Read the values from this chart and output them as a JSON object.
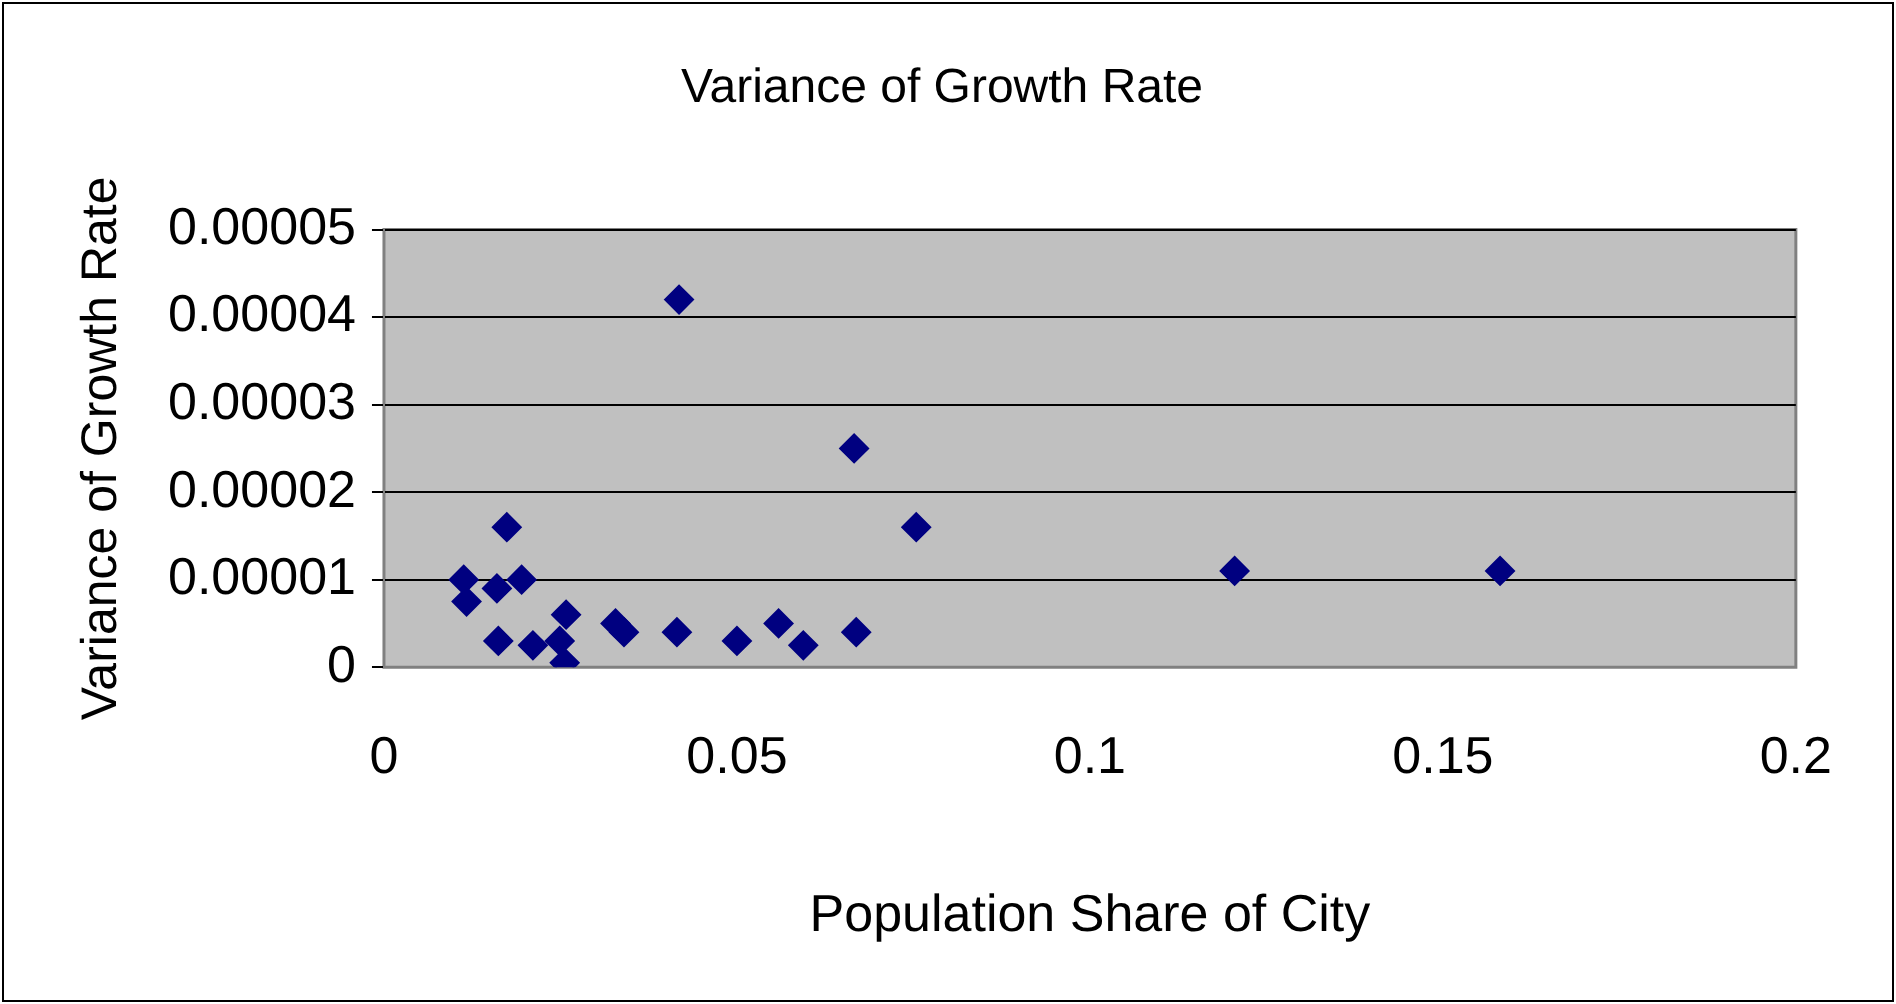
{
  "chart_data": {
    "type": "scatter",
    "title": "Variance of Growth Rate",
    "xlabel": "Population Share of City",
    "ylabel": "Variance of Growth Rate",
    "x": [
      0.0418,
      0.0666,
      0.0174,
      0.0754,
      0.0113,
      0.016,
      0.0195,
      0.0117,
      0.0258,
      0.0328,
      0.034,
      0.0162,
      0.0211,
      0.0249,
      0.0256,
      0.0415,
      0.05,
      0.0559,
      0.0594,
      0.0669,
      0.1205,
      0.1581
    ],
    "series": [
      {
        "color": "#000080",
        "values": [
          4.2e-05,
          2.5e-05,
          1.6e-05,
          1.6e-05,
          1e-05,
          9e-06,
          1e-05,
          7.5e-06,
          6e-06,
          5e-06,
          4e-06,
          3e-06,
          2.5e-06,
          3e-06,
          5e-07,
          4e-06,
          3e-06,
          5e-06,
          2.5e-06,
          4e-06,
          1.1e-05,
          1.1e-05
        ]
      }
    ],
    "xlim": [
      0,
      0.2
    ],
    "xticks": [
      0,
      0.05,
      0.1,
      0.15,
      0.2
    ],
    "ylim": [
      0,
      5e-05
    ],
    "yticks": [
      0,
      {
        "value": 1e-05,
        "label": "0.00001"
      },
      {
        "value": 2e-05,
        "label": "0.00002"
      },
      {
        "value": 3e-05,
        "label": "0.00003"
      },
      {
        "value": 4e-05,
        "label": "0.00004"
      },
      {
        "value": 5e-05,
        "label": "0.00005"
      }
    ],
    "grid": "y",
    "legend": false,
    "marker": "diamond"
  }
}
